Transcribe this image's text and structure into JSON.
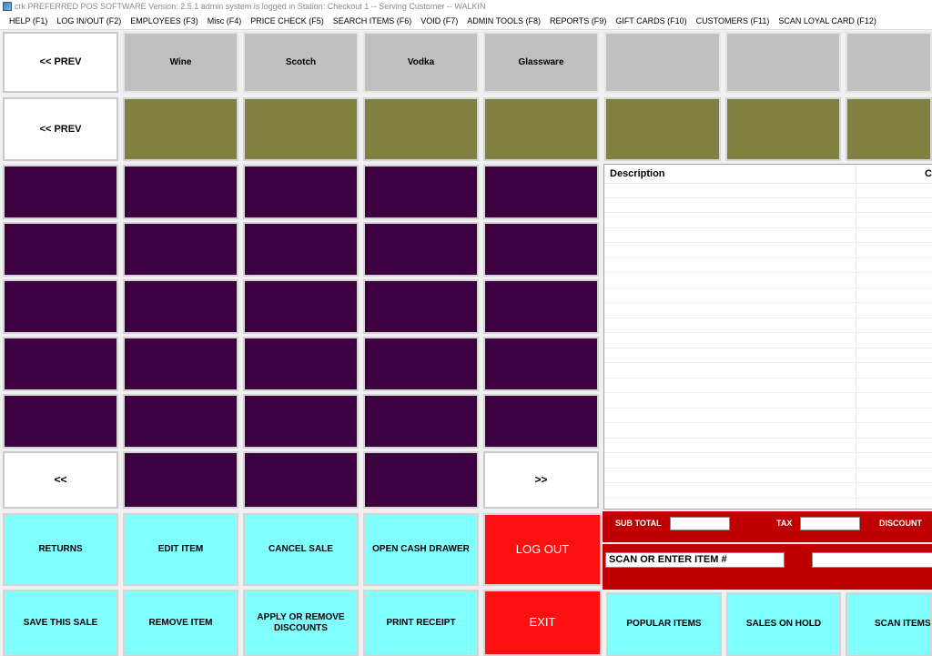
{
  "window": {
    "title": "crk  PREFERRED POS SOFTWARE Version: 2.5.1 admin system is logged in Station: Checkout 1 --  Serving Customer  --  WALKIN"
  },
  "menu": [
    "HELP (F1)",
    "LOG IN/OUT (F2)",
    "EMPLOYEES (F3)",
    "Misc (F4)",
    "PRICE CHECK (F5)",
    "SEARCH ITEMS (F6)",
    "VOID (F7)",
    "ADMIN TOOLS (F8)",
    "REPORTS (F9)",
    "GIFT CARDS (F10)",
    "CUSTOMERS (F11)",
    "SCAN LOYAL CARD (F12)"
  ],
  "categories": {
    "prev_label": "<< PREV",
    "items": [
      "Wine",
      "Scotch",
      "Vodka",
      "Glassware",
      "",
      "",
      ""
    ]
  },
  "subcategories": {
    "prev_label": "<< PREV"
  },
  "item_grid": {
    "back_label": "<<",
    "forward_label": ">>"
  },
  "table": {
    "columns": [
      "Description",
      "C"
    ]
  },
  "totals": {
    "subtotal_label": "SUB TOTAL",
    "subtotal_value": "",
    "tax_label": "TAX",
    "tax_value": "",
    "discount_label": "DISCOUNT",
    "scan_label": "SCAN OR ENTER ITEM #"
  },
  "actions": {
    "returns": "RETURNS",
    "edit_item": "EDIT ITEM",
    "cancel_sale": "CANCEL SALE",
    "open_cash_drawer": "OPEN CASH DRAWER",
    "log_out": "LOG OUT",
    "save_sale": "SAVE THIS SALE",
    "remove_item": "REMOVE ITEM",
    "discounts": "APPLY OR REMOVE DISCOUNTS",
    "print_receipt": "PRINT RECEIPT",
    "exit": "EXIT",
    "popular_items": "POPULAR ITEMS",
    "sales_on_hold": "SALES ON HOLD",
    "scan_items": "SCAN ITEMS"
  },
  "colors": {
    "category": "#c0c0c0",
    "subcategory": "#808040",
    "item": "#3d0041",
    "action": "#80ffff",
    "danger": "#ff1010",
    "totals_panel": "#c00000"
  }
}
